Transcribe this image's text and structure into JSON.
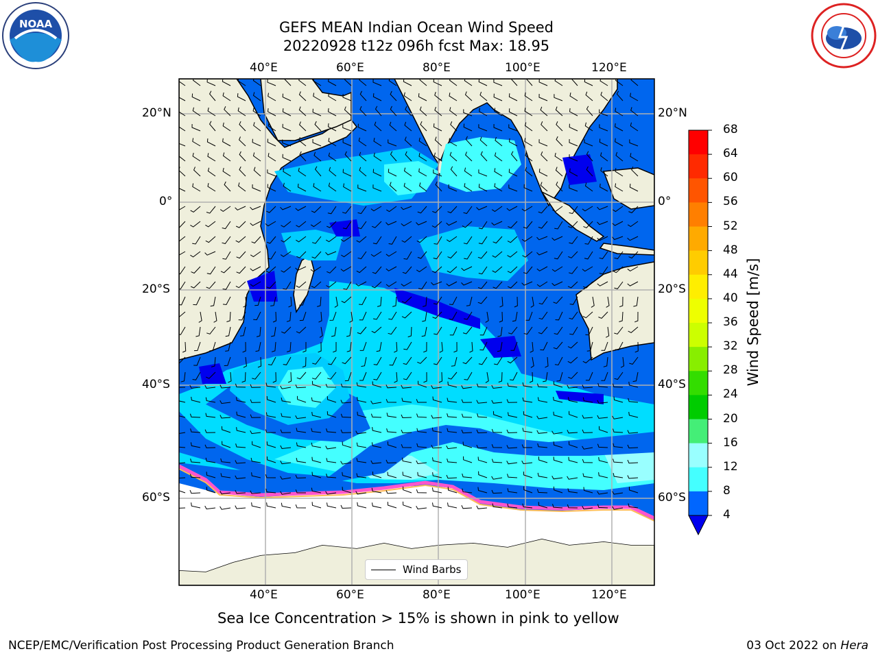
{
  "title_line1": "GEFS MEAN Indian Ocean Wind Speed",
  "title_line2": "20220928 t12z 096h fcst   Max: 18.95",
  "lon_labels": [
    "40°E",
    "60°E",
    "80°E",
    "100°E",
    "120°E"
  ],
  "lat_labels": [
    "20°N",
    "0°",
    "20°S",
    "40°S",
    "60°S"
  ],
  "colorbar": {
    "title": "Wind Speed [m/s]",
    "ticks": [
      "68",
      "64",
      "60",
      "56",
      "52",
      "48",
      "44",
      "40",
      "36",
      "32",
      "28",
      "24",
      "20",
      "16",
      "12",
      "8",
      "4"
    ],
    "colors": [
      "#ff0000",
      "#ff2a00",
      "#ff5500",
      "#ff7700",
      "#ff9900",
      "#ffbb00",
      "#ffee00",
      "#ffff00",
      "#eeff00",
      "#ccff00",
      "#99ff00",
      "#55ee00",
      "#00dd00",
      "#00ee44",
      "#55ff88",
      "#99ffff",
      "#44ffff",
      "#00ffff",
      "#00ccff",
      "#0066ff"
    ]
  },
  "legend_label": "Wind Barbs",
  "caption": "Sea Ice Concentration > 15% is shown in pink to yellow",
  "footer_left": "NCEP/EMC/Verification Post Processing Product Generation Branch",
  "footer_date": "03 Oct 2022 on",
  "footer_host": "Hera",
  "logos": {
    "left": "noaa-logo",
    "right": "nws-logo",
    "noaa_text": "NOAA"
  }
}
